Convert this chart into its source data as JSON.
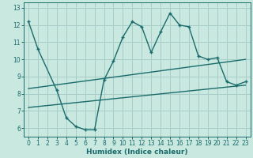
{
  "xlabel": "Humidex (Indice chaleur)",
  "ylabel": "",
  "bg_color": "#c8e8e0",
  "line_color": "#1a6b6b",
  "grid_color": "#a8ccc8",
  "xlim": [
    -0.5,
    23.5
  ],
  "ylim": [
    5.5,
    13.3
  ],
  "xticks": [
    0,
    1,
    2,
    3,
    4,
    5,
    6,
    7,
    8,
    9,
    10,
    11,
    12,
    13,
    14,
    15,
    16,
    17,
    18,
    19,
    20,
    21,
    22,
    23
  ],
  "yticks": [
    6,
    7,
    8,
    9,
    10,
    11,
    12,
    13
  ],
  "line1_x": [
    0,
    1,
    3,
    4,
    5,
    6,
    7,
    8,
    9,
    10,
    11,
    12,
    13,
    14,
    15,
    16,
    17,
    18,
    19,
    20,
    21,
    22,
    23
  ],
  "line1_y": [
    12.2,
    10.6,
    8.2,
    6.6,
    6.1,
    5.9,
    5.9,
    8.8,
    9.9,
    11.3,
    12.2,
    11.9,
    10.4,
    11.6,
    12.7,
    12.0,
    11.9,
    10.2,
    10.0,
    10.1,
    8.7,
    8.5,
    8.7
  ],
  "line2_x": [
    0,
    23
  ],
  "line2_y": [
    8.3,
    10.0
  ],
  "line3_x": [
    0,
    23
  ],
  "line3_y": [
    7.2,
    8.5
  ],
  "tick_fontsize": 5.5,
  "xlabel_fontsize": 6.5
}
